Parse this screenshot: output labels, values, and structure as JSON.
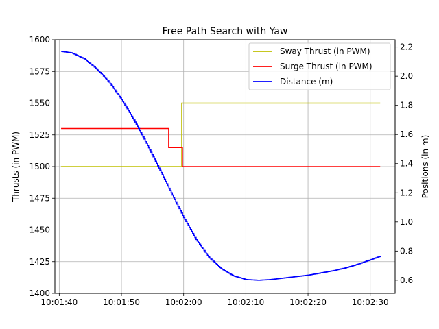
{
  "chart_data": {
    "type": "line",
    "title": "Free Path Search with Yaw",
    "xlabel": "",
    "ylabel_left": "Thrusts (in PWM)",
    "ylabel_right": "Positions (in m)",
    "grid": true,
    "legend_position": "top-right",
    "xlim": [
      "10:01:39.3",
      "10:02:34.0"
    ],
    "x_ticks": [
      "10:01:40",
      "10:01:50",
      "10:02:00",
      "10:02:10",
      "10:02:20",
      "10:02:30"
    ],
    "ylim_left": [
      1400,
      1600
    ],
    "y_ticks_left": [
      "1400",
      "1425",
      "1450",
      "1475",
      "1500",
      "1525",
      "1550",
      "1575",
      "1600"
    ],
    "ylim_right": [
      0.51,
      2.25
    ],
    "y_ticks_right": [
      "0.6",
      "0.8",
      "1.0",
      "1.2",
      "1.4",
      "1.6",
      "1.8",
      "2.0",
      "2.2"
    ],
    "series": [
      {
        "name": "Sway Thrust (in PWM)",
        "axis": "left",
        "color": "#bfbf00",
        "step": true,
        "points": [
          [
            "10:01:40.3",
            1500
          ],
          [
            "10:01:59.7",
            1500
          ],
          [
            "10:01:59.7",
            1550
          ],
          [
            "10:02:31.6",
            1550
          ]
        ]
      },
      {
        "name": "Surge Thrust (in PWM)",
        "axis": "left",
        "color": "#ff0000",
        "step": true,
        "points": [
          [
            "10:01:40.3",
            1530
          ],
          [
            "10:01:57.6",
            1530
          ],
          [
            "10:01:57.6",
            1515
          ],
          [
            "10:01:59.8",
            1515
          ],
          [
            "10:01:59.8",
            1500
          ],
          [
            "10:02:31.6",
            1500
          ]
        ]
      },
      {
        "name": "Distance (m)",
        "axis": "right",
        "color": "#0000ff",
        "step": false,
        "points": [
          [
            "10:01:40.3",
            2.17
          ],
          [
            "10:01:42.0",
            2.16
          ],
          [
            "10:01:44.0",
            2.12
          ],
          [
            "10:01:46.0",
            2.05
          ],
          [
            "10:01:48.0",
            1.96
          ],
          [
            "10:01:50.0",
            1.84
          ],
          [
            "10:01:52.0",
            1.7
          ],
          [
            "10:01:54.0",
            1.54
          ],
          [
            "10:01:56.0",
            1.37
          ],
          [
            "10:01:58.0",
            1.2
          ],
          [
            "10:02:00.0",
            1.03
          ],
          [
            "10:02:02.0",
            0.88
          ],
          [
            "10:02:04.0",
            0.76
          ],
          [
            "10:02:06.0",
            0.68
          ],
          [
            "10:02:08.0",
            0.63
          ],
          [
            "10:02:10.0",
            0.605
          ],
          [
            "10:02:12.0",
            0.6
          ],
          [
            "10:02:14.0",
            0.605
          ],
          [
            "10:02:16.0",
            0.615
          ],
          [
            "10:02:18.0",
            0.625
          ],
          [
            "10:02:20.0",
            0.635
          ],
          [
            "10:02:22.0",
            0.65
          ],
          [
            "10:02:24.0",
            0.665
          ],
          [
            "10:02:26.0",
            0.685
          ],
          [
            "10:02:28.0",
            0.71
          ],
          [
            "10:02:30.0",
            0.74
          ],
          [
            "10:02:31.6",
            0.765
          ]
        ]
      }
    ]
  }
}
